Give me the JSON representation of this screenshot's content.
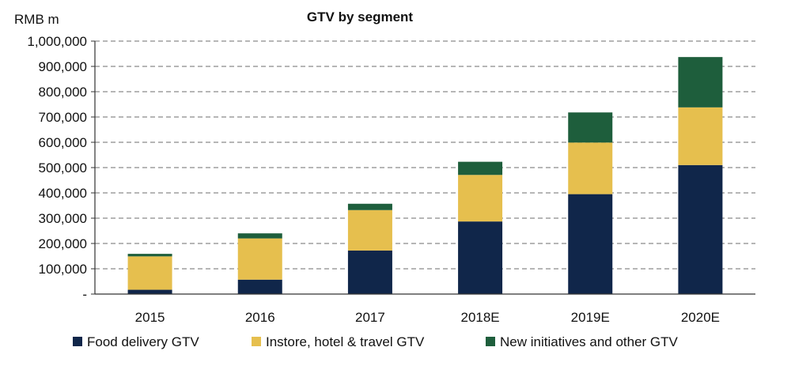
{
  "chart_data": {
    "type": "bar",
    "stacked": true,
    "title": "GTV by segment",
    "ylabel": "RMB m",
    "xlabel": "",
    "categories": [
      "2015",
      "2016",
      "2017",
      "2018E",
      "2019E",
      "2020E"
    ],
    "series": [
      {
        "name": "Food delivery GTV",
        "color": "#10264a",
        "values": [
          17000,
          57000,
          172000,
          287000,
          395000,
          510000
        ]
      },
      {
        "name": "Instore, hotel & travel GTV",
        "color": "#e6bf4e",
        "values": [
          132000,
          163000,
          160000,
          184000,
          204000,
          228000
        ]
      },
      {
        "name": "New initiatives and other GTV",
        "color": "#1e5e3c",
        "values": [
          10000,
          20000,
          25000,
          52000,
          119000,
          199000
        ]
      }
    ],
    "ylim": [
      0,
      1000000
    ],
    "yticks": [
      0,
      100000,
      200000,
      300000,
      400000,
      500000,
      600000,
      700000,
      800000,
      900000,
      1000000
    ],
    "ytick_labels": [
      "-",
      "100,000",
      "200,000",
      "300,000",
      "400,000",
      "500,000",
      "600,000",
      "700,000",
      "800,000",
      "900,000",
      "1,000,000"
    ],
    "grid": true,
    "legend_position": "bottom"
  }
}
